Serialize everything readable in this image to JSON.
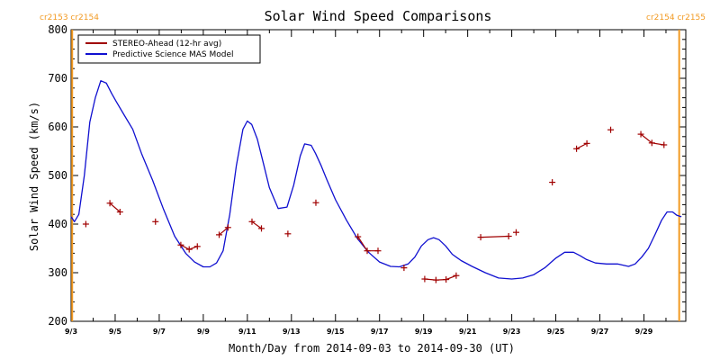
{
  "colors": {
    "stereo": "#a00000",
    "model": "#1010d0",
    "carrington": "#f29a22",
    "axis": "#000000"
  },
  "carrington": {
    "left_label": "cr2153 cr2154",
    "right_label": "cr2154 cr2155",
    "left_line_x": 3.05,
    "right_line_x": 30.6
  },
  "chart_data": {
    "type": "line",
    "title": "Solar Wind Speed Comparisons",
    "xlabel": "Month/Day from 2014-09-03 to 2014-09-30 (UT)",
    "ylabel": "Solar Wind Speed (km/s)",
    "x_unit": "day of September 2014",
    "xlim": [
      3,
      30.9
    ],
    "ylim": [
      200,
      800
    ],
    "yticks": [
      200,
      300,
      400,
      500,
      600,
      700,
      800
    ],
    "xticks": [
      {
        "x": 3,
        "label": "9/3"
      },
      {
        "x": 5,
        "label": "9/5"
      },
      {
        "x": 7,
        "label": "9/7"
      },
      {
        "x": 9,
        "label": "9/9"
      },
      {
        "x": 11,
        "label": "9/11"
      },
      {
        "x": 13,
        "label": "9/13"
      },
      {
        "x": 15,
        "label": "9/15"
      },
      {
        "x": 17,
        "label": "9/17"
      },
      {
        "x": 19,
        "label": "9/19"
      },
      {
        "x": 21,
        "label": "9/21"
      },
      {
        "x": 23,
        "label": "9/23"
      },
      {
        "x": 25,
        "label": "9/25"
      },
      {
        "x": 27,
        "label": "9/27"
      },
      {
        "x": 29,
        "label": "9/29"
      }
    ],
    "legend": {
      "placement": "top-left"
    },
    "series": [
      {
        "name": "STEREO-Ahead (12-hr avg)",
        "style": "markers",
        "x": [
          3.67,
          4.76,
          5.22,
          6.83,
          7.98,
          8.36,
          8.73,
          9.72,
          10.12,
          11.21,
          11.64,
          12.84,
          14.11,
          16.02,
          16.44,
          16.93,
          18.11,
          19.05,
          19.56,
          20.02,
          20.48,
          21.59,
          22.86,
          23.2,
          24.84,
          25.94,
          26.41,
          27.49,
          28.86,
          29.36,
          29.91
        ],
        "y": [
          400,
          443,
          425,
          405,
          357,
          348,
          354,
          378,
          393,
          405,
          391,
          380,
          444,
          374,
          345,
          345,
          310,
          287,
          285,
          286,
          294,
          373,
          375,
          383,
          486,
          555,
          566,
          594,
          585,
          567,
          563
        ],
        "segments": [
          [
            1,
            2
          ],
          [
            4,
            5,
            6
          ],
          [
            7,
            8
          ],
          [
            9,
            10
          ],
          [
            13,
            14,
            15
          ],
          [
            17,
            18,
            19,
            20
          ],
          [
            21,
            22
          ],
          [
            25,
            26
          ],
          [
            28,
            29,
            30
          ]
        ]
      },
      {
        "name": "Predictive Science MAS Model",
        "style": "line",
        "x": [
          3.0,
          3.15,
          3.35,
          3.6,
          3.85,
          4.1,
          4.35,
          4.6,
          4.85,
          5.05,
          5.4,
          5.8,
          6.2,
          6.7,
          7.2,
          7.7,
          8.2,
          8.6,
          9.0,
          9.3,
          9.6,
          9.9,
          10.2,
          10.5,
          10.8,
          11.0,
          11.2,
          11.45,
          11.7,
          12.0,
          12.4,
          12.8,
          13.1,
          13.4,
          13.6,
          13.9,
          14.1,
          14.35,
          14.6,
          15.0,
          15.5,
          16.0,
          16.5,
          17.0,
          17.5,
          17.9,
          18.3,
          18.6,
          18.9,
          19.2,
          19.45,
          19.7,
          20.0,
          20.3,
          20.7,
          21.2,
          21.8,
          22.4,
          23.0,
          23.5,
          24.0,
          24.5,
          25.0,
          25.4,
          25.8,
          26.1,
          26.4,
          26.8,
          27.3,
          27.8,
          28.3,
          28.6,
          28.9,
          29.2,
          29.5,
          29.8,
          30.05,
          30.3,
          30.5,
          30.7
        ],
        "y": [
          415,
          405,
          420,
          500,
          610,
          660,
          695,
          690,
          668,
          652,
          625,
          595,
          545,
          490,
          430,
          375,
          340,
          322,
          312,
          312,
          320,
          345,
          420,
          520,
          595,
          612,
          605,
          575,
          530,
          475,
          432,
          435,
          480,
          540,
          565,
          562,
          545,
          520,
          492,
          450,
          408,
          370,
          342,
          322,
          313,
          312,
          318,
          332,
          355,
          368,
          372,
          368,
          355,
          338,
          325,
          313,
          300,
          289,
          287,
          289,
          296,
          310,
          330,
          342,
          342,
          335,
          327,
          320,
          318,
          318,
          313,
          318,
          332,
          350,
          378,
          408,
          425,
          425,
          418,
          415
        ]
      }
    ]
  }
}
